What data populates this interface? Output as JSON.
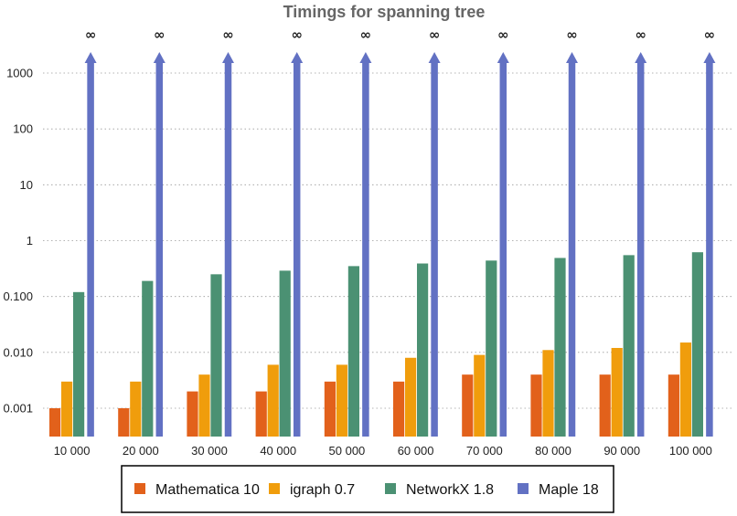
{
  "chart_data": {
    "type": "bar",
    "title": "Timings for spanning tree",
    "xlabel": "",
    "ylabel": "",
    "yscale": "log",
    "ylim": [
      0.0005,
      5000
    ],
    "yticks": [
      "0.001",
      "0.010",
      "0.100",
      "1",
      "10",
      "100",
      "1000"
    ],
    "ytick_values": [
      0.001,
      0.01,
      0.1,
      1,
      10,
      100,
      1000
    ],
    "grid": "horizontal dotted",
    "legend_position": "bottom",
    "categories": [
      "10 000",
      "20 000",
      "30 000",
      "40 000",
      "50 000",
      "60 000",
      "70 000",
      "80 000",
      "90 000",
      "100 000"
    ],
    "series": [
      {
        "name": "Mathematica 10",
        "color": "#e2611b",
        "values": [
          0.001,
          0.001,
          0.002,
          0.002,
          0.003,
          0.003,
          0.004,
          0.004,
          0.004,
          0.004
        ]
      },
      {
        "name": "igraph 0.7",
        "color": "#f09d0c",
        "values": [
          0.003,
          0.003,
          0.004,
          0.006,
          0.006,
          0.008,
          0.009,
          0.011,
          0.012,
          0.015
        ]
      },
      {
        "name": "NetworkX 1.8",
        "color": "#4b9173",
        "values": [
          0.12,
          0.19,
          0.25,
          0.29,
          0.35,
          0.39,
          0.44,
          0.49,
          0.55,
          0.62
        ]
      },
      {
        "name": "Maple 18",
        "color": "#6271c3",
        "values": [
          "∞",
          "∞",
          "∞",
          "∞",
          "∞",
          "∞",
          "∞",
          "∞",
          "∞",
          "∞"
        ]
      }
    ],
    "infinity_label": "∞"
  }
}
